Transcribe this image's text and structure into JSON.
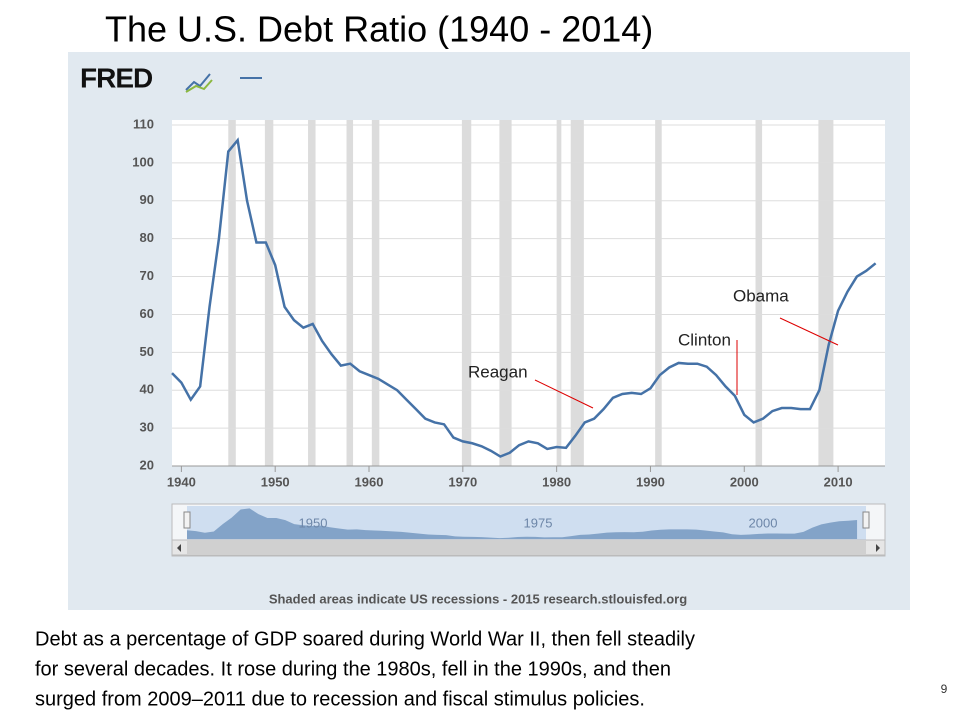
{
  "title": "The U.S. Debt Ratio (1940 - 2014)",
  "chart_data": {
    "type": "line",
    "logo": "FRED",
    "x": [
      1939,
      1940,
      1941,
      1942,
      1943,
      1944,
      1945,
      1946,
      1947,
      1948,
      1949,
      1950,
      1951,
      1952,
      1953,
      1954,
      1955,
      1956,
      1957,
      1958,
      1959,
      1960,
      1961,
      1962,
      1963,
      1964,
      1965,
      1966,
      1967,
      1968,
      1969,
      1970,
      1971,
      1972,
      1973,
      1974,
      1975,
      1976,
      1977,
      1978,
      1979,
      1980,
      1981,
      1982,
      1983,
      1984,
      1985,
      1986,
      1987,
      1988,
      1989,
      1990,
      1991,
      1992,
      1993,
      1994,
      1995,
      1996,
      1997,
      1998,
      1999,
      2000,
      2001,
      2002,
      2003,
      2004,
      2005,
      2006,
      2007,
      2008,
      2009,
      2010,
      2011,
      2012,
      2013,
      2014
    ],
    "series": [
      {
        "color": "#4572a7",
        "values": [
          44.5,
          42,
          37.5,
          41,
          62,
          80,
          103,
          106,
          90,
          79,
          79,
          73,
          62,
          58.5,
          56.5,
          57.5,
          53,
          49.5,
          46.5,
          47,
          45,
          44,
          43,
          41.5,
          40,
          37.5,
          35,
          32.5,
          31.5,
          31,
          27.5,
          26.5,
          26,
          25.2,
          24,
          22.5,
          23.5,
          25.5,
          26.5,
          26,
          24.5,
          25,
          24.8,
          28,
          31.5,
          32.5,
          35,
          38,
          39,
          39.3,
          39,
          40.5,
          44,
          46,
          47.2,
          47,
          47,
          46.2,
          44,
          41,
          38.5,
          33.5,
          31.5,
          32.5,
          34.5,
          35.3,
          35.3,
          35,
          35,
          40,
          52,
          61,
          66,
          70,
          71.5,
          73.5
        ]
      }
    ],
    "recessions": [
      [
        1945,
        1945.8
      ],
      [
        1948.9,
        1949.8
      ],
      [
        1953.5,
        1954.3
      ],
      [
        1957.6,
        1958.3
      ],
      [
        1960.3,
        1961.1
      ],
      [
        1969.9,
        1970.9
      ],
      [
        1973.9,
        1975.2
      ],
      [
        1980,
        1980.5
      ],
      [
        1981.5,
        1982.9
      ],
      [
        1990.5,
        1991.2
      ],
      [
        2001.2,
        2001.9
      ],
      [
        2007.9,
        2009.5
      ]
    ],
    "xlim": [
      1939,
      2015
    ],
    "xticks": [
      1940,
      1950,
      1960,
      1970,
      1980,
      1990,
      2000,
      2010
    ],
    "ylim": [
      20,
      110
    ],
    "yticks": [
      20,
      30,
      40,
      50,
      60,
      70,
      80,
      90,
      100,
      110
    ],
    "grid": true,
    "annotations": [
      {
        "text": "Reagan"
      },
      {
        "text": "Clinton"
      },
      {
        "text": "Obama"
      }
    ],
    "navigator_labels": [
      "1950",
      "1975",
      "2000"
    ],
    "footer": "Shaded areas indicate US recessions - 2015 research.stlouisfed.org"
  },
  "caption": [
    "Debt as a percentage of GDP soared during World War II, then fell steadily",
    "for several decades. It rose during the 1980s, fell in the 1990s, and then",
    "surged from 2009–2011 due to recession and fiscal stimulus policies."
  ],
  "slide_number": "9"
}
